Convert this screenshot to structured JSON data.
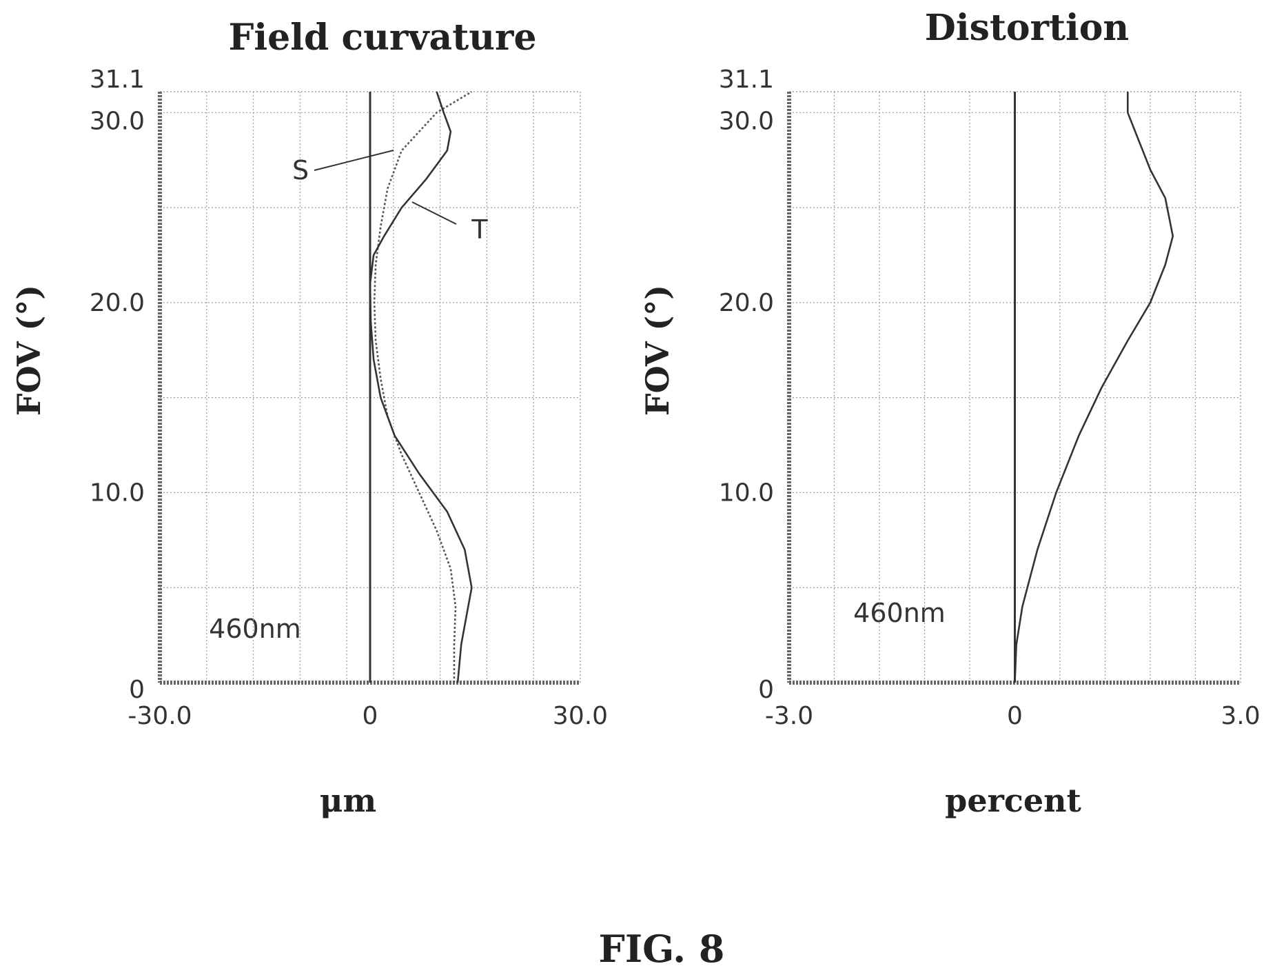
{
  "chart_data": [
    {
      "type": "line",
      "title": "Field curvature",
      "xlabel": "μm",
      "ylabel": "FOV (°)",
      "xlim": [
        -30.0,
        30.0
      ],
      "ylim": [
        0,
        31.1
      ],
      "x_ticks": [
        "-30.0",
        "0",
        "30.0"
      ],
      "y_ticks": [
        "0",
        "10.0",
        "20.0",
        "30.0",
        "31.1"
      ],
      "annotation": "460nm",
      "grid": true,
      "series": [
        {
          "name": "S",
          "style": "dotted",
          "points": [
            [
              12.0,
              0
            ],
            [
              12.0,
              2
            ],
            [
              12.2,
              4
            ],
            [
              11.5,
              6
            ],
            [
              9.5,
              8
            ],
            [
              7.0,
              10
            ],
            [
              4.5,
              12
            ],
            [
              2.5,
              14
            ],
            [
              1.5,
              16
            ],
            [
              0.8,
              18
            ],
            [
              0.6,
              20
            ],
            [
              0.8,
              22
            ],
            [
              1.5,
              24
            ],
            [
              2.5,
              26
            ],
            [
              4.5,
              28
            ],
            [
              9.5,
              30
            ],
            [
              14.5,
              31.1
            ]
          ]
        },
        {
          "name": "T",
          "style": "solid",
          "points": [
            [
              12.5,
              0
            ],
            [
              13.0,
              2
            ],
            [
              14.0,
              4
            ],
            [
              14.5,
              5
            ],
            [
              13.5,
              7
            ],
            [
              11.0,
              9
            ],
            [
              7.0,
              11
            ],
            [
              3.5,
              13
            ],
            [
              1.5,
              15
            ],
            [
              0.5,
              17
            ],
            [
              0.1,
              19
            ],
            [
              0.0,
              21
            ],
            [
              0.5,
              22.5
            ],
            [
              2.0,
              23.5
            ],
            [
              4.5,
              25
            ],
            [
              8.0,
              26.5
            ],
            [
              11.0,
              28
            ],
            [
              11.5,
              29
            ],
            [
              10.5,
              30
            ],
            [
              9.5,
              31.1
            ]
          ]
        }
      ],
      "labels": {
        "s": "S",
        "t": "T"
      }
    },
    {
      "type": "line",
      "title": "Distortion",
      "xlabel": "percent",
      "ylabel": "FOV (°)",
      "xlim": [
        -3.0,
        3.0
      ],
      "ylim": [
        0,
        31.1
      ],
      "x_ticks": [
        "-3.0",
        "0",
        "3.0"
      ],
      "y_ticks": [
        "0",
        "10.0",
        "20.0",
        "30.0",
        "31.1"
      ],
      "annotation": "460nm",
      "grid": true,
      "series": [
        {
          "style": "solid",
          "points": [
            [
              0.0,
              0
            ],
            [
              0.02,
              2
            ],
            [
              0.1,
              4
            ],
            [
              0.3,
              7
            ],
            [
              0.55,
              10
            ],
            [
              0.85,
              13
            ],
            [
              1.15,
              15.5
            ],
            [
              1.5,
              18
            ],
            [
              1.8,
              20
            ],
            [
              2.0,
              22
            ],
            [
              2.1,
              23.5
            ],
            [
              2.0,
              25.5
            ],
            [
              1.8,
              27
            ],
            [
              1.6,
              29
            ],
            [
              1.5,
              30
            ],
            [
              1.5,
              31.1
            ]
          ]
        }
      ]
    }
  ],
  "figure_caption": "FIG. 8"
}
